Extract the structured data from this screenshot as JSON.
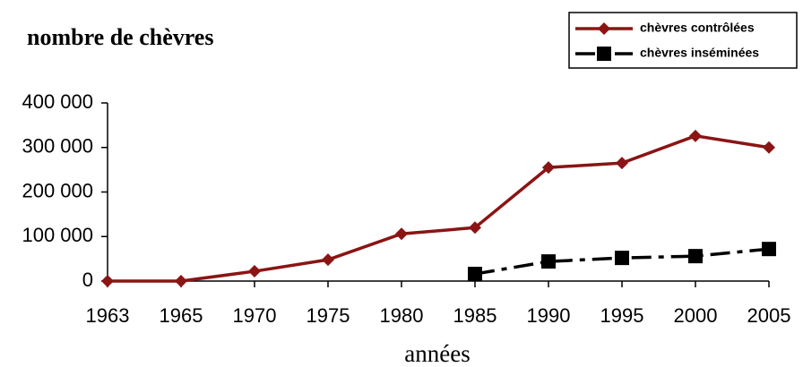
{
  "chart_data": {
    "type": "line",
    "title": "nombre de chèvres",
    "x_label": "années",
    "categories": [
      "1963",
      "1965",
      "1970",
      "1975",
      "1980",
      "1985",
      "1990",
      "1995",
      "2000",
      "2005"
    ],
    "series": [
      {
        "name": "chèvres contrôlées",
        "color": "#8b1414",
        "marker": "diamond",
        "dash": "solid",
        "values": [
          0,
          0,
          22000,
          48000,
          106000,
          120000,
          255000,
          265000,
          326000,
          300000
        ]
      },
      {
        "name": "chèvres inséminées",
        "color": "#000000",
        "marker": "square",
        "dash": "dashdot",
        "values": [
          null,
          null,
          null,
          null,
          null,
          16000,
          44000,
          52000,
          56000,
          72000
        ]
      }
    ],
    "ylim": [
      0,
      400000
    ],
    "yticks": [
      0,
      {
        "value": 100000,
        "label": "100 000"
      },
      {
        "value": 200000,
        "label": "200 000"
      },
      {
        "value": 300000,
        "label": "300 000"
      },
      {
        "value": 400000,
        "label": "400 000"
      }
    ],
    "legend": "top-right"
  }
}
